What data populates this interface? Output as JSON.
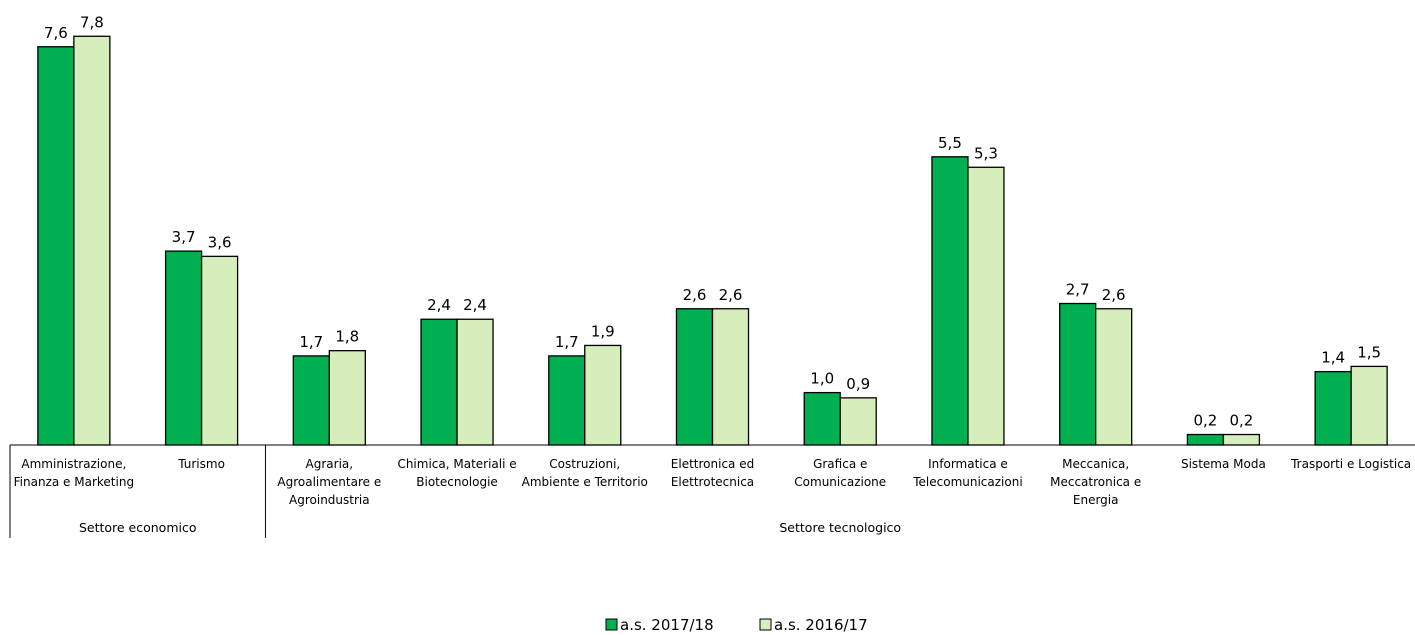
{
  "chart_data": {
    "type": "bar",
    "title": "",
    "xlabel": "",
    "ylabel": "",
    "ylim": [
      0,
      8
    ],
    "grid": false,
    "legend_position": "bottom-center",
    "categories": [
      [
        "Amministrazione,",
        "Finanza e Marketing"
      ],
      [
        "Turismo"
      ],
      [
        "Agraria,",
        "Agroalimentare e",
        "Agroindustria"
      ],
      [
        "Chimica, Materiali e",
        "Biotecnologie"
      ],
      [
        "Costruzioni,",
        "Ambiente e Territorio"
      ],
      [
        "Elettronica ed",
        "Elettrotecnica"
      ],
      [
        "Grafica e",
        "Comunicazione"
      ],
      [
        "Informatica e",
        "Telecomunicazioni"
      ],
      [
        "Meccanica,",
        "Meccatronica e",
        "Energia"
      ],
      [
        "Sistema Moda"
      ],
      [
        "Trasporti e Logistica"
      ]
    ],
    "groups": [
      {
        "label": "Settore economico",
        "count": 2
      },
      {
        "label": "Settore tecnologico",
        "count": 9
      }
    ],
    "series": [
      {
        "name": "a.s. 2017/18",
        "color": "#00b050",
        "values": [
          7.6,
          3.7,
          1.7,
          2.4,
          1.7,
          2.6,
          1.0,
          5.5,
          2.7,
          0.2,
          1.4
        ],
        "labels": [
          "7,6",
          "3,7",
          "1,7",
          "2,4",
          "1,7",
          "2,6",
          "1,0",
          "5,5",
          "2,7",
          "0,2",
          "1,4"
        ]
      },
      {
        "name": "a.s. 2016/17",
        "color": "#d6eebc",
        "values": [
          7.8,
          3.6,
          1.8,
          2.4,
          1.9,
          2.6,
          0.9,
          5.3,
          2.6,
          0.2,
          1.5
        ],
        "labels": [
          "7,8",
          "3,6",
          "1,8",
          "2,4",
          "1,9",
          "2,6",
          "0,9",
          "5,3",
          "2,6",
          "0,2",
          "1,5"
        ]
      }
    ]
  }
}
